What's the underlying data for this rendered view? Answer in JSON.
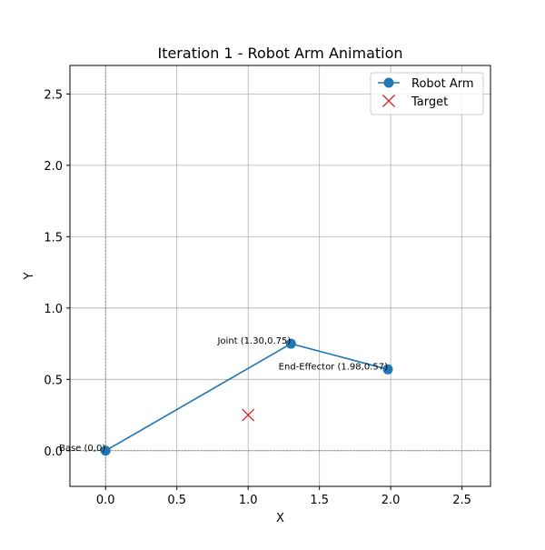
{
  "chart_data": {
    "type": "line",
    "title": "Iteration 1 - Robot Arm Animation",
    "xlabel": "X",
    "ylabel": "Y",
    "xlim": [
      -0.25,
      2.7
    ],
    "ylim": [
      -0.25,
      2.7
    ],
    "xticks": [
      0.0,
      0.5,
      1.0,
      1.5,
      2.0,
      2.5
    ],
    "yticks": [
      0.0,
      0.5,
      1.0,
      1.5,
      2.0,
      2.5
    ],
    "xtick_labels": [
      "0.0",
      "0.5",
      "1.0",
      "1.5",
      "2.0",
      "2.5"
    ],
    "ytick_labels": [
      "0.0",
      "0.5",
      "1.0",
      "1.5",
      "2.0",
      "2.5"
    ],
    "grid": true,
    "legend_position": "top-right",
    "series": [
      {
        "name": "Robot Arm",
        "color": "#1f77b4",
        "marker": "circle",
        "x": [
          0.0,
          1.3,
          1.98
        ],
        "y": [
          0.0,
          0.75,
          0.57
        ]
      },
      {
        "name": "Target",
        "color": "#d62728",
        "marker": "x",
        "x": [
          1.0
        ],
        "y": [
          0.25
        ]
      }
    ],
    "annotations": [
      {
        "text": "Base (0,0)",
        "x": 0.0,
        "y": 0.0,
        "anchor": "end"
      },
      {
        "text": "Joint (1.30,0.75)",
        "x": 1.3,
        "y": 0.75,
        "anchor": "end"
      },
      {
        "text": "End-Effector (1.98,0.57)",
        "x": 1.98,
        "y": 0.57,
        "anchor": "end"
      }
    ]
  }
}
